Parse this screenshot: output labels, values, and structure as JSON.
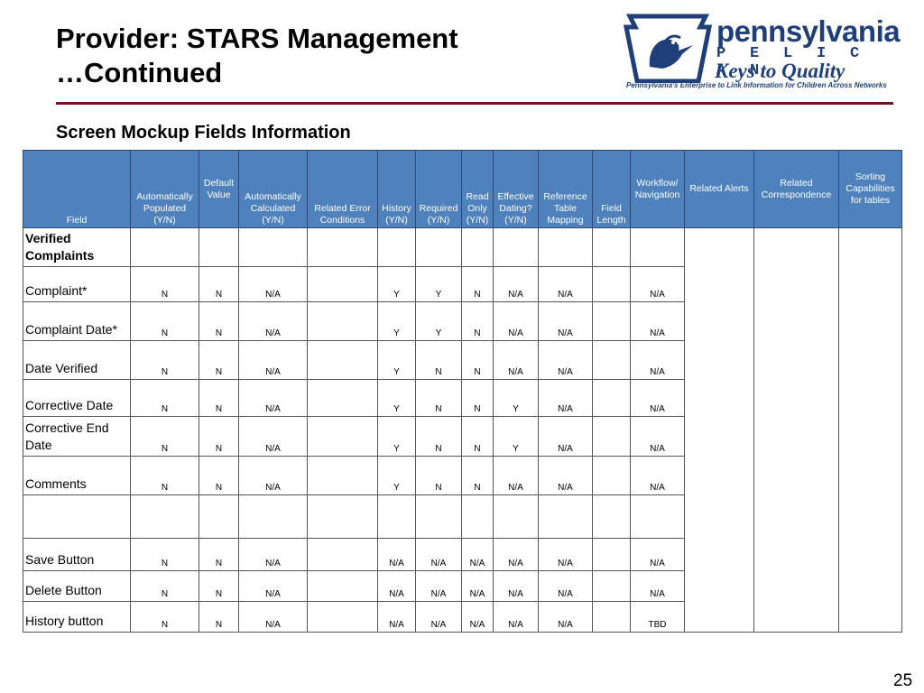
{
  "title_line1": "Provider: STARS Management",
  "title_line2": "…Continued",
  "logo": {
    "brand": "pennsylvania",
    "pelican": [
      "P",
      "E",
      "L",
      "I",
      "C",
      "A",
      "N"
    ],
    "keys": "Keys to Quality",
    "tagline": "Pennsylvania's Enterprise to Link Information for Children Across Networks",
    "colors": {
      "navy": "#1f3f7a"
    }
  },
  "subtitle": "Screen Mockup Fields Information",
  "table": {
    "headers": [
      "Field",
      "Automatically Populated (Y/N)",
      "Default Value",
      "Automatically Calculated (Y/N)",
      "Related Error Conditions",
      "History (Y/N)",
      "Required (Y/N)",
      "Read Only (Y/N)",
      "Effective Dating? (Y/N)",
      "Reference Table Mapping",
      "Field Length",
      "Workflow/ Navigation",
      "Related Alerts",
      "Related Correspondence",
      "Sorting Capabilities for tables"
    ],
    "section": "Verified Complaints",
    "rows": [
      {
        "field": "Complaint*",
        "auto_pop": "N",
        "default": "N",
        "auto_calc": "N/A",
        "error": "",
        "history": "Y",
        "required": "Y",
        "read_only": "N",
        "eff_dating": "N/A",
        "ref_table": "N/A",
        "length": "",
        "workflow": "N/A"
      },
      {
        "field": "Complaint Date*",
        "auto_pop": "N",
        "default": "N",
        "auto_calc": "N/A",
        "error": "",
        "history": "Y",
        "required": "Y",
        "read_only": "N",
        "eff_dating": "N/A",
        "ref_table": "N/A",
        "length": "",
        "workflow": "N/A"
      },
      {
        "field": "Date Verified",
        "auto_pop": "N",
        "default": "N",
        "auto_calc": "N/A",
        "error": "",
        "history": "Y",
        "required": "N",
        "read_only": "N",
        "eff_dating": "N/A",
        "ref_table": "N/A",
        "length": "",
        "workflow": "N/A"
      },
      {
        "field": "Corrective Date",
        "auto_pop": "N",
        "default": "N",
        "auto_calc": "N/A",
        "error": "",
        "history": "Y",
        "required": "N",
        "read_only": "N",
        "eff_dating": "Y",
        "ref_table": "N/A",
        "length": "",
        "workflow": "N/A"
      },
      {
        "field": "Corrective End Date",
        "auto_pop": "N",
        "default": "N",
        "auto_calc": "N/A",
        "error": "",
        "history": "Y",
        "required": "N",
        "read_only": "N",
        "eff_dating": "Y",
        "ref_table": "N/A",
        "length": "",
        "workflow": "N/A"
      },
      {
        "field": "Comments",
        "auto_pop": "N",
        "default": "N",
        "auto_calc": "N/A",
        "error": "",
        "history": "Y",
        "required": "N",
        "read_only": "N",
        "eff_dating": "N/A",
        "ref_table": "N/A",
        "length": "",
        "workflow": "N/A"
      },
      {
        "field": "",
        "auto_pop": "",
        "default": "",
        "auto_calc": "",
        "error": "",
        "history": "",
        "required": "",
        "read_only": "",
        "eff_dating": "",
        "ref_table": "",
        "length": "",
        "workflow": ""
      },
      {
        "field": "Save Button",
        "auto_pop": "N",
        "default": "N",
        "auto_calc": "N/A",
        "error": "",
        "history": "N/A",
        "required": "N/A",
        "read_only": "N/A",
        "eff_dating": "N/A",
        "ref_table": "N/A",
        "length": "",
        "workflow": "N/A"
      },
      {
        "field": "Delete Button",
        "auto_pop": "N",
        "default": "N",
        "auto_calc": "N/A",
        "error": "",
        "history": "N/A",
        "required": "N/A",
        "read_only": "N/A",
        "eff_dating": "N/A",
        "ref_table": "N/A",
        "length": "",
        "workflow": "N/A"
      },
      {
        "field": "History button",
        "auto_pop": "N",
        "default": "N",
        "auto_calc": "N/A",
        "error": "",
        "history": "N/A",
        "required": "N/A",
        "read_only": "N/A",
        "eff_dating": "N/A",
        "ref_table": "N/A",
        "length": "",
        "workflow": "TBD"
      }
    ],
    "colors": {
      "header_bg": "#4f81bd",
      "highlight": "#e00000"
    }
  },
  "page_number": "25"
}
